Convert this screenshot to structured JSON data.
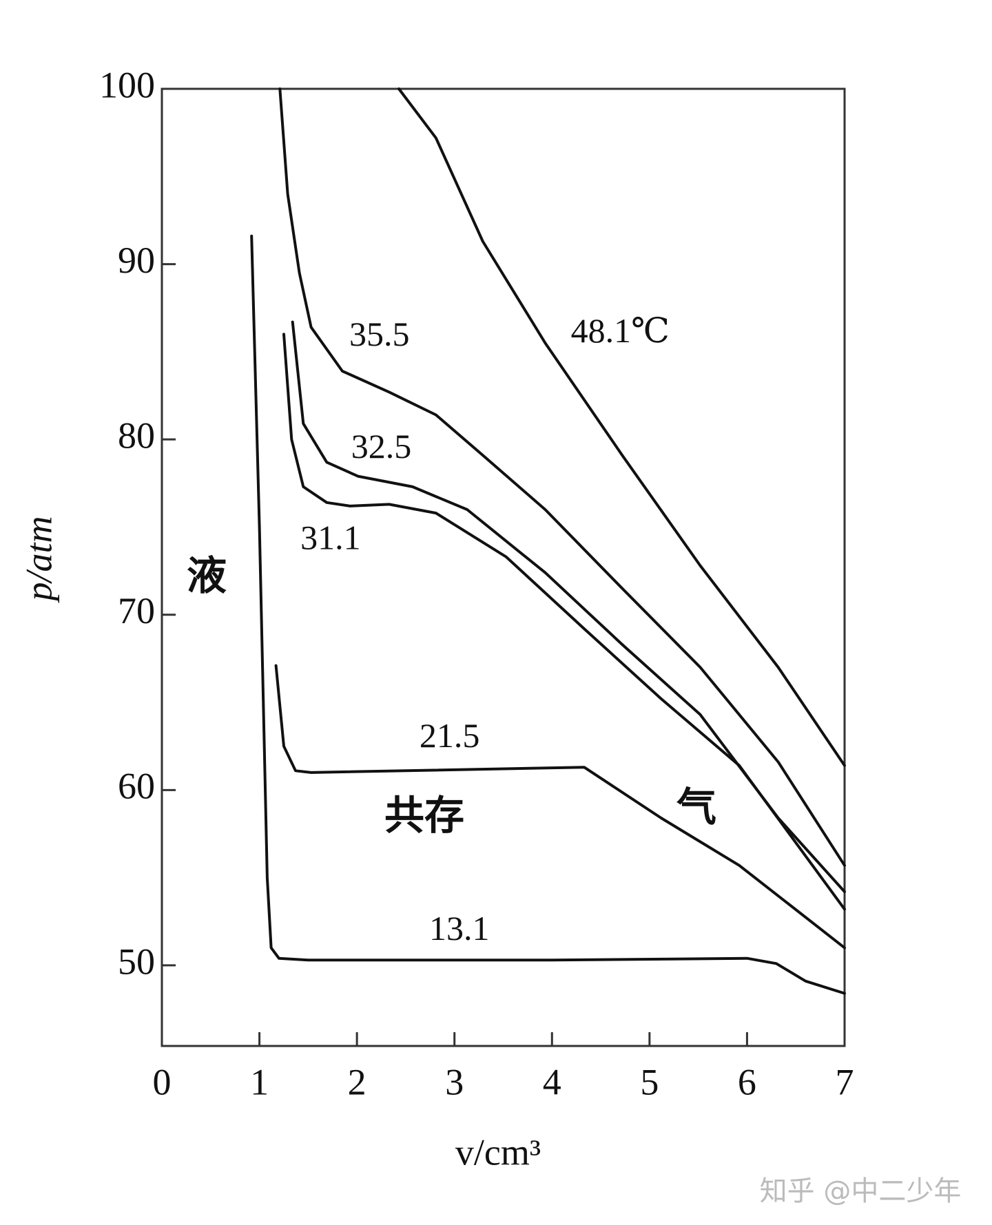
{
  "chart_data": {
    "type": "line",
    "x_label": "v/cm³",
    "y_label": "p/atm",
    "annotations": [
      "液",
      "共存",
      "气"
    ],
    "xlim": [
      0,
      7
    ],
    "xticks": [
      0,
      1,
      2,
      3,
      4,
      5,
      6,
      7
    ],
    "ylim": [
      45.4,
      100
    ],
    "yticks": [
      50,
      60,
      70,
      80,
      90,
      100
    ],
    "grid": false,
    "series": [
      {
        "name": "48.1℃",
        "color": "#111",
        "x": [
          2.43,
          2.81,
          3.29,
          3.93,
          4.72,
          5.52,
          6.32,
          7.0
        ],
        "values": [
          100,
          97.2,
          91.3,
          85.5,
          79.1,
          72.8,
          67.0,
          61.4
        ]
      },
      {
        "name": "35.5",
        "color": "#111",
        "x": [
          1.21,
          1.29,
          1.41,
          1.53,
          1.85,
          2.33,
          2.81,
          3.29,
          3.93,
          4.72,
          5.52,
          6.32,
          7.0
        ],
        "values": [
          100,
          94.0,
          89.5,
          86.4,
          83.9,
          82.7,
          81.4,
          79.1,
          76.0,
          71.5,
          67.0,
          61.6,
          55.7
        ]
      },
      {
        "name": "32.5",
        "color": "#111",
        "x": [
          1.34,
          1.45,
          1.69,
          2.01,
          2.57,
          3.13,
          3.93,
          4.72,
          5.52,
          6.32,
          7.0
        ],
        "values": [
          86.7,
          80.9,
          78.7,
          77.9,
          77.3,
          76.0,
          72.4,
          68.3,
          64.3,
          58.4,
          54.2
        ]
      },
      {
        "name": "31.1",
        "color": "#111",
        "x": [
          1.25,
          1.33,
          1.45,
          1.69,
          1.93,
          2.33,
          2.81,
          3.53,
          4.33,
          5.12,
          5.92,
          7.0
        ],
        "values": [
          86.0,
          80.0,
          77.3,
          76.4,
          76.2,
          76.3,
          75.8,
          73.3,
          69.2,
          65.2,
          61.4,
          53.2
        ]
      },
      {
        "name": "21.5",
        "color": "#111",
        "x": [
          1.17,
          1.25,
          1.37,
          1.53,
          4.33,
          5.12,
          5.92,
          7.0
        ],
        "values": [
          67.1,
          62.5,
          61.1,
          61.0,
          61.3,
          58.4,
          55.7,
          51.0
        ]
      },
      {
        "name": "13.1",
        "color": "#111",
        "x": [
          0.92,
          1.0,
          1.08,
          1.12,
          1.2,
          1.5,
          4.0,
          6.0,
          6.3,
          6.6,
          7.0
        ],
        "values": [
          91.6,
          75,
          55,
          51,
          50.4,
          50.3,
          50.3,
          50.4,
          50.1,
          49.1,
          48.4
        ]
      }
    ]
  },
  "watermark": "知乎 @中二少年"
}
